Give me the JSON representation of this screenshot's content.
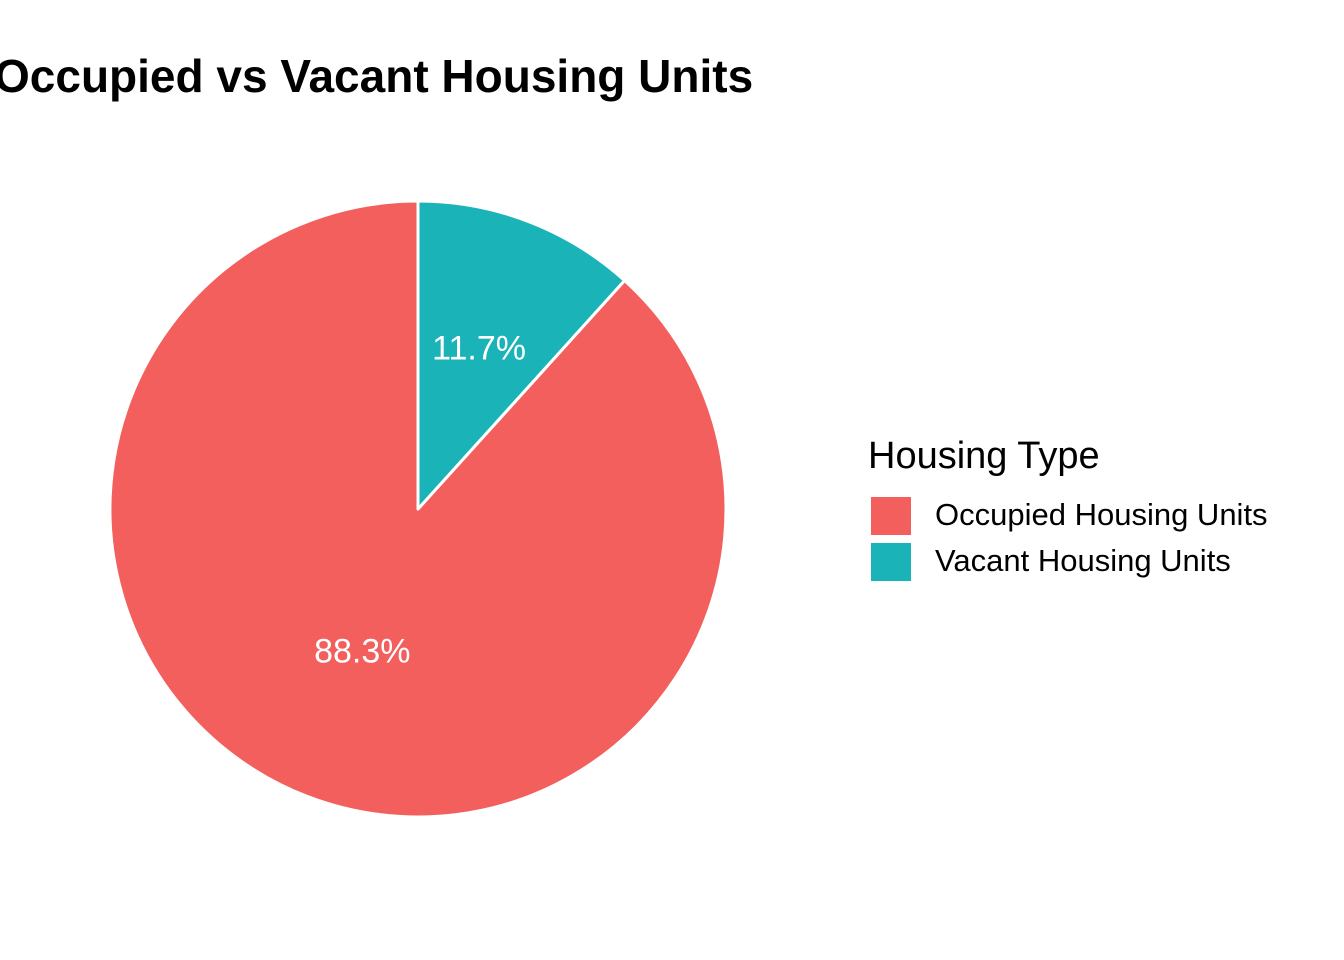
{
  "chart_data": {
    "type": "pie",
    "title": "Occupied vs Vacant Housing Units",
    "legend_title": "Housing Type",
    "legend_position": "right",
    "start": "top",
    "direction": "counterclockwise",
    "slices": [
      {
        "name": "Occupied Housing Units",
        "value": 88.3,
        "label": "88.3%",
        "color": "#F25F5C"
      },
      {
        "name": "Vacant Housing Units",
        "value": 11.7,
        "label": "11.7%",
        "color": "#1AB3B8"
      }
    ]
  }
}
